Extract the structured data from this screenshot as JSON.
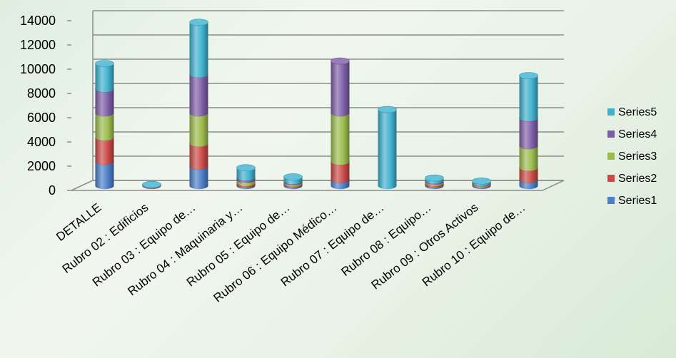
{
  "chart_data": {
    "type": "bar",
    "stacked": true,
    "style": "3d-cylinder",
    "categories": [
      "DETALLE",
      "Rubro 02 : Edificios",
      "Rubro 03 : Equipo de…",
      "Rubro 04 : Maquinaria y…",
      "Rubro 05 : Equipo de…",
      "Rubro 06 : Equipo Médico…",
      "Rubro 07 : Equipo de…",
      "Rubro 08 : Equipo…",
      "Rubro 09 : Otros Activos",
      "Rubro 10 : Equipo de…"
    ],
    "series": [
      {
        "name": "Series1",
        "color": "#4a7ec8",
        "values": [
          2000,
          30,
          1600,
          100,
          100,
          500,
          0,
          100,
          60,
          500
        ]
      },
      {
        "name": "Series2",
        "color": "#c94a47",
        "values": [
          2000,
          20,
          1900,
          150,
          100,
          1500,
          0,
          150,
          80,
          1000
        ]
      },
      {
        "name": "Series3",
        "color": "#9bbb4d",
        "values": [
          2000,
          20,
          2500,
          250,
          100,
          4000,
          0,
          100,
          60,
          1800
        ]
      },
      {
        "name": "Series4",
        "color": "#7d5ea6",
        "values": [
          2000,
          20,
          3200,
          200,
          100,
          4300,
          0,
          100,
          60,
          2300
        ]
      },
      {
        "name": "Series5",
        "color": "#3fb1cd",
        "values": [
          2100,
          30,
          4300,
          800,
          350,
          0,
          6300,
          200,
          140,
          3500
        ]
      }
    ],
    "yticks": [
      0,
      2000,
      4000,
      6000,
      8000,
      10000,
      12000,
      14000
    ],
    "ylim": [
      0,
      14000
    ],
    "grid": true,
    "legend": "right"
  }
}
